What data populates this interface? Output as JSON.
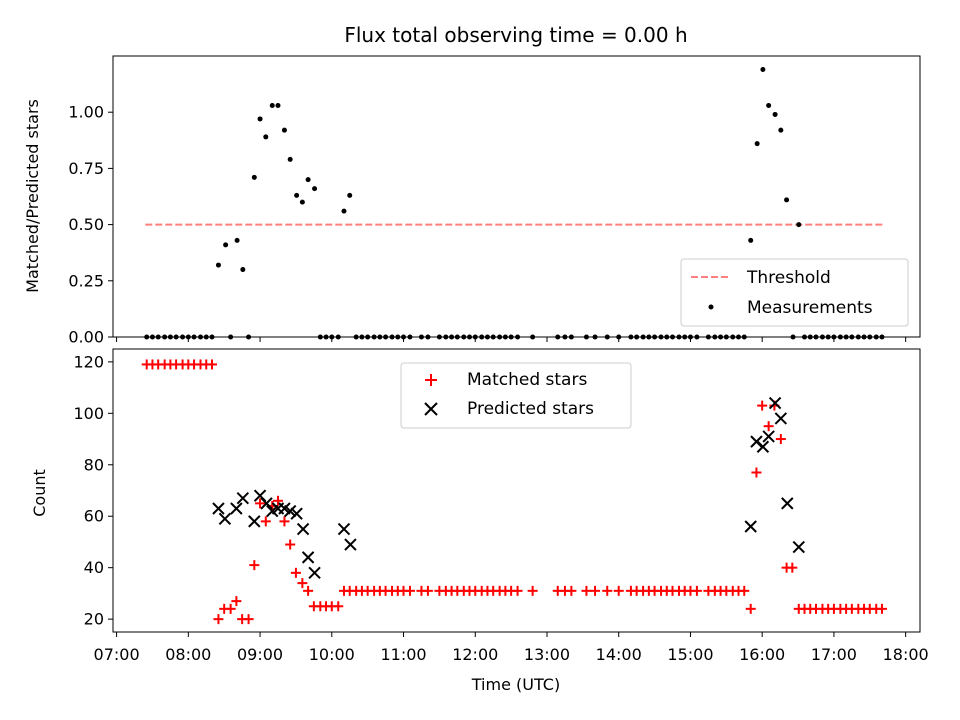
{
  "chart_data": [
    {
      "type": "scatter",
      "title": "Flux total observing time = 0.00 h",
      "xlabel": "",
      "ylabel": "Matched/Predicted stars",
      "xlim": [
        6.95,
        18.2
      ],
      "ylim": [
        0,
        1.25
      ],
      "yticks": [
        0.0,
        0.25,
        0.5,
        0.75,
        1.0
      ],
      "ytick_labels": [
        "0.00",
        "0.25",
        "0.50",
        "0.75",
        "1.00"
      ],
      "legend_position": "lower-right",
      "threshold": {
        "name": "Threshold",
        "value": 0.5,
        "x_start": 7.4,
        "x_end": 17.7,
        "color": "#ff7f7f"
      },
      "series": [
        {
          "name": "Measurements",
          "color": "#000000",
          "points": [
            [
              8.42,
              0.32
            ],
            [
              8.52,
              0.41
            ],
            [
              8.68,
              0.43
            ],
            [
              8.76,
              0.3
            ],
            [
              8.92,
              0.71
            ],
            [
              9.0,
              0.97
            ],
            [
              9.08,
              0.89
            ],
            [
              9.17,
              1.03
            ],
            [
              9.25,
              1.03
            ],
            [
              9.34,
              0.92
            ],
            [
              9.42,
              0.79
            ],
            [
              9.51,
              0.63
            ],
            [
              9.59,
              0.6
            ],
            [
              9.67,
              0.7
            ],
            [
              9.76,
              0.66
            ],
            [
              10.17,
              0.56
            ],
            [
              10.25,
              0.63
            ],
            [
              15.84,
              0.43
            ],
            [
              15.93,
              0.86
            ],
            [
              16.01,
              1.19
            ],
            [
              16.09,
              1.03
            ],
            [
              16.18,
              0.99
            ],
            [
              16.26,
              0.92
            ],
            [
              16.34,
              0.61
            ],
            [
              16.51,
              0.5
            ],
            [
              7.42,
              0
            ],
            [
              7.5,
              0
            ],
            [
              7.58,
              0
            ],
            [
              7.67,
              0
            ],
            [
              7.75,
              0
            ],
            [
              7.83,
              0
            ],
            [
              7.92,
              0
            ],
            [
              8.0,
              0
            ],
            [
              8.08,
              0
            ],
            [
              8.17,
              0
            ],
            [
              8.25,
              0
            ],
            [
              8.33,
              0
            ],
            [
              8.59,
              0
            ],
            [
              8.84,
              0
            ],
            [
              9.84,
              0
            ],
            [
              9.92,
              0
            ],
            [
              10.0,
              0
            ],
            [
              10.09,
              0
            ],
            [
              10.34,
              0
            ],
            [
              10.42,
              0
            ],
            [
              10.5,
              0
            ],
            [
              10.59,
              0
            ],
            [
              10.67,
              0
            ],
            [
              10.75,
              0
            ],
            [
              10.84,
              0
            ],
            [
              10.92,
              0
            ],
            [
              11.0,
              0
            ],
            [
              11.09,
              0
            ],
            [
              11.25,
              0
            ],
            [
              11.34,
              0
            ],
            [
              11.5,
              0
            ],
            [
              11.59,
              0
            ],
            [
              11.67,
              0
            ],
            [
              11.75,
              0
            ],
            [
              11.84,
              0
            ],
            [
              11.92,
              0
            ],
            [
              12.0,
              0
            ],
            [
              12.09,
              0
            ],
            [
              12.17,
              0
            ],
            [
              12.25,
              0
            ],
            [
              12.34,
              0
            ],
            [
              12.42,
              0
            ],
            [
              12.5,
              0
            ],
            [
              12.59,
              0
            ],
            [
              12.8,
              0
            ],
            [
              13.15,
              0
            ],
            [
              13.25,
              0
            ],
            [
              13.34,
              0
            ],
            [
              13.55,
              0
            ],
            [
              13.67,
              0
            ],
            [
              13.84,
              0
            ],
            [
              14.0,
              0
            ],
            [
              14.17,
              0
            ],
            [
              14.25,
              0
            ],
            [
              14.34,
              0
            ],
            [
              14.42,
              0
            ],
            [
              14.5,
              0
            ],
            [
              14.59,
              0
            ],
            [
              14.67,
              0
            ],
            [
              14.75,
              0
            ],
            [
              14.84,
              0
            ],
            [
              14.92,
              0
            ],
            [
              15.0,
              0
            ],
            [
              15.09,
              0
            ],
            [
              15.25,
              0
            ],
            [
              15.34,
              0
            ],
            [
              15.42,
              0
            ],
            [
              15.5,
              0
            ],
            [
              15.59,
              0
            ],
            [
              15.67,
              0
            ],
            [
              15.75,
              0
            ],
            [
              16.43,
              0
            ],
            [
              16.59,
              0
            ],
            [
              16.67,
              0
            ],
            [
              16.75,
              0
            ],
            [
              16.84,
              0
            ],
            [
              16.92,
              0
            ],
            [
              17.0,
              0
            ],
            [
              17.09,
              0
            ],
            [
              17.17,
              0
            ],
            [
              17.25,
              0
            ],
            [
              17.34,
              0
            ],
            [
              17.42,
              0
            ],
            [
              17.5,
              0
            ],
            [
              17.59,
              0
            ],
            [
              17.67,
              0
            ]
          ]
        }
      ]
    },
    {
      "type": "scatter",
      "title": "",
      "xlabel": "Time (UTC)",
      "ylabel": "Count",
      "xlim": [
        6.95,
        18.2
      ],
      "ylim": [
        15,
        125
      ],
      "yticks": [
        20,
        40,
        60,
        80,
        100,
        120
      ],
      "ytick_labels": [
        "20",
        "40",
        "60",
        "80",
        "100",
        "120"
      ],
      "xticks": [
        7,
        8,
        9,
        10,
        11,
        12,
        13,
        14,
        15,
        16,
        17,
        18
      ],
      "xtick_labels": [
        "07:00",
        "08:00",
        "09:00",
        "10:00",
        "11:00",
        "12:00",
        "13:00",
        "14:00",
        "15:00",
        "16:00",
        "17:00",
        "18:00"
      ],
      "legend_position": "upper-center",
      "series": [
        {
          "name": "Matched stars",
          "marker": "plus",
          "color": "#ff0000",
          "points": [
            [
              7.42,
              119
            ],
            [
              7.5,
              119
            ],
            [
              7.58,
              119
            ],
            [
              7.67,
              119
            ],
            [
              7.75,
              119
            ],
            [
              7.83,
              119
            ],
            [
              7.92,
              119
            ],
            [
              8.0,
              119
            ],
            [
              8.08,
              119
            ],
            [
              8.17,
              119
            ],
            [
              8.25,
              119
            ],
            [
              8.33,
              119
            ],
            [
              8.42,
              20
            ],
            [
              8.5,
              24
            ],
            [
              8.59,
              24
            ],
            [
              8.67,
              27
            ],
            [
              8.75,
              20
            ],
            [
              8.84,
              20
            ],
            [
              8.92,
              41
            ],
            [
              9.0,
              65
            ],
            [
              9.08,
              58
            ],
            [
              9.17,
              64
            ],
            [
              9.25,
              66
            ],
            [
              9.34,
              58
            ],
            [
              9.42,
              49
            ],
            [
              9.5,
              38
            ],
            [
              9.59,
              34
            ],
            [
              9.67,
              31
            ],
            [
              9.75,
              25
            ],
            [
              9.84,
              25
            ],
            [
              9.92,
              25
            ],
            [
              10.0,
              25
            ],
            [
              10.09,
              25
            ],
            [
              10.17,
              31
            ],
            [
              10.25,
              31
            ],
            [
              10.34,
              31
            ],
            [
              10.42,
              31
            ],
            [
              10.5,
              31
            ],
            [
              10.59,
              31
            ],
            [
              10.67,
              31
            ],
            [
              10.75,
              31
            ],
            [
              10.84,
              31
            ],
            [
              10.92,
              31
            ],
            [
              11.0,
              31
            ],
            [
              11.09,
              31
            ],
            [
              11.25,
              31
            ],
            [
              11.34,
              31
            ],
            [
              11.5,
              31
            ],
            [
              11.59,
              31
            ],
            [
              11.67,
              31
            ],
            [
              11.75,
              31
            ],
            [
              11.84,
              31
            ],
            [
              11.92,
              31
            ],
            [
              12.0,
              31
            ],
            [
              12.09,
              31
            ],
            [
              12.17,
              31
            ],
            [
              12.25,
              31
            ],
            [
              12.34,
              31
            ],
            [
              12.42,
              31
            ],
            [
              12.5,
              31
            ],
            [
              12.59,
              31
            ],
            [
              12.8,
              31
            ],
            [
              13.15,
              31
            ],
            [
              13.25,
              31
            ],
            [
              13.34,
              31
            ],
            [
              13.55,
              31
            ],
            [
              13.67,
              31
            ],
            [
              13.84,
              31
            ],
            [
              14.0,
              31
            ],
            [
              14.17,
              31
            ],
            [
              14.25,
              31
            ],
            [
              14.34,
              31
            ],
            [
              14.42,
              31
            ],
            [
              14.5,
              31
            ],
            [
              14.59,
              31
            ],
            [
              14.67,
              31
            ],
            [
              14.75,
              31
            ],
            [
              14.84,
              31
            ],
            [
              14.92,
              31
            ],
            [
              15.0,
              31
            ],
            [
              15.09,
              31
            ],
            [
              15.25,
              31
            ],
            [
              15.34,
              31
            ],
            [
              15.42,
              31
            ],
            [
              15.5,
              31
            ],
            [
              15.59,
              31
            ],
            [
              15.67,
              31
            ],
            [
              15.75,
              31
            ],
            [
              15.84,
              24
            ],
            [
              15.92,
              77
            ],
            [
              16.0,
              103
            ],
            [
              16.09,
              95
            ],
            [
              16.17,
              103
            ],
            [
              16.26,
              90
            ],
            [
              16.34,
              40
            ],
            [
              16.42,
              40
            ],
            [
              16.51,
              24
            ],
            [
              16.59,
              24
            ],
            [
              16.67,
              24
            ],
            [
              16.75,
              24
            ],
            [
              16.84,
              24
            ],
            [
              16.92,
              24
            ],
            [
              17.0,
              24
            ],
            [
              17.09,
              24
            ],
            [
              17.17,
              24
            ],
            [
              17.25,
              24
            ],
            [
              17.34,
              24
            ],
            [
              17.42,
              24
            ],
            [
              17.5,
              24
            ],
            [
              17.59,
              24
            ],
            [
              17.67,
              24
            ]
          ]
        },
        {
          "name": "Predicted stars",
          "marker": "x",
          "color": "#000000",
          "points": [
            [
              8.42,
              63
            ],
            [
              8.51,
              59
            ],
            [
              8.67,
              63
            ],
            [
              8.76,
              67
            ],
            [
              8.92,
              58
            ],
            [
              9.0,
              68
            ],
            [
              9.09,
              65
            ],
            [
              9.17,
              62
            ],
            [
              9.25,
              63
            ],
            [
              9.34,
              63
            ],
            [
              9.42,
              62
            ],
            [
              9.51,
              61
            ],
            [
              9.6,
              55
            ],
            [
              9.67,
              44
            ],
            [
              9.76,
              38
            ],
            [
              10.17,
              55
            ],
            [
              10.26,
              49
            ],
            [
              15.84,
              56
            ],
            [
              15.92,
              89
            ],
            [
              16.01,
              87
            ],
            [
              16.09,
              91
            ],
            [
              16.18,
              104
            ],
            [
              16.26,
              98
            ],
            [
              16.35,
              65
            ],
            [
              16.51,
              48
            ]
          ]
        }
      ]
    }
  ]
}
